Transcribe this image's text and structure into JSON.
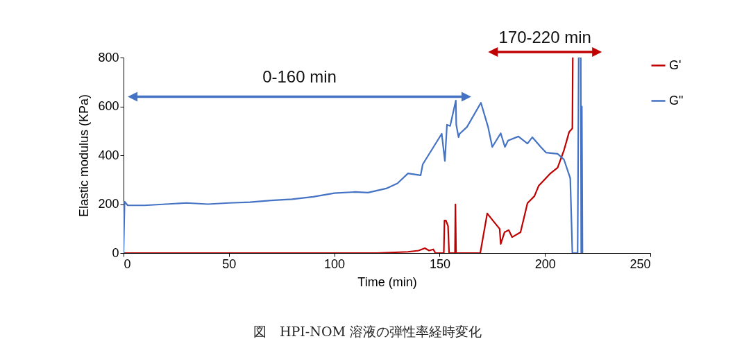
{
  "chart_data": {
    "type": "line",
    "xlabel": "Time (min)",
    "ylabel": "Elastic modulus (KPa)",
    "xlim": [
      0,
      250
    ],
    "xticks": [
      0,
      50,
      100,
      150,
      200,
      250
    ],
    "ylim": [
      0,
      800
    ],
    "yticks": [
      0,
      200,
      400,
      600,
      800
    ],
    "legend": "top right",
    "grid": false,
    "marker": "none",
    "line_style": "solid",
    "annotations": [
      "0-160 min",
      "170-220 min",
      "図　HPI-NOM 溶液の弾性率経時変化"
    ],
    "series": [
      {
        "name": "G'",
        "color": "#c00000",
        "x": [
          0,
          20,
          40,
          60,
          80,
          100,
          120,
          135,
          140,
          143,
          145,
          147,
          148,
          150,
          152,
          152.3,
          153,
          154,
          154.5,
          155,
          157.3,
          157.5,
          157.8,
          160,
          165,
          169.3,
          172.6,
          175,
          178.5,
          179,
          180.8,
          182.8,
          184.4,
          188.4,
          191.7,
          195,
          197,
          202.6,
          206,
          209,
          211.5,
          213,
          213.2
        ],
        "values": [
          0,
          0,
          0,
          0,
          0,
          0,
          0,
          5,
          10,
          20,
          10,
          15,
          0,
          0,
          0,
          133,
          133,
          110,
          0,
          0,
          0,
          199,
          0,
          0,
          0,
          0,
          162,
          136,
          99,
          37,
          85,
          94,
          65,
          85,
          204,
          233,
          275,
          326,
          349,
          420,
          496,
          510,
          800
        ]
      },
      {
        "name": "G\"",
        "color": "#4472c4",
        "x": [
          0,
          0.5,
          2,
          10,
          20,
          30,
          40,
          50,
          60,
          70,
          80,
          90,
          100,
          110,
          116,
          125,
          130,
          135,
          141,
          142,
          151,
          152.5,
          153.5,
          155,
          157.7,
          157.9,
          159,
          159.5,
          163,
          169.6,
          173,
          175,
          179,
          181,
          182.5,
          187.4,
          191.7,
          194,
          198,
          200.5,
          206,
          209,
          212,
          213,
          215.5,
          216,
          217,
          217.2,
          217.5,
          217.8
        ],
        "values": [
          0,
          210,
          195,
          195,
          200,
          205,
          200,
          205,
          208,
          215,
          220,
          230,
          245,
          250,
          247,
          265,
          285,
          326,
          318,
          363,
          488,
          377,
          525,
          520,
          624,
          525,
          474,
          488,
          516,
          615,
          516,
          434,
          490,
          434,
          460,
          477,
          448,
          474,
          434,
          411,
          406,
          383,
          306,
          0,
          0,
          800,
          800,
          0,
          600,
          0
        ]
      }
    ]
  }
}
